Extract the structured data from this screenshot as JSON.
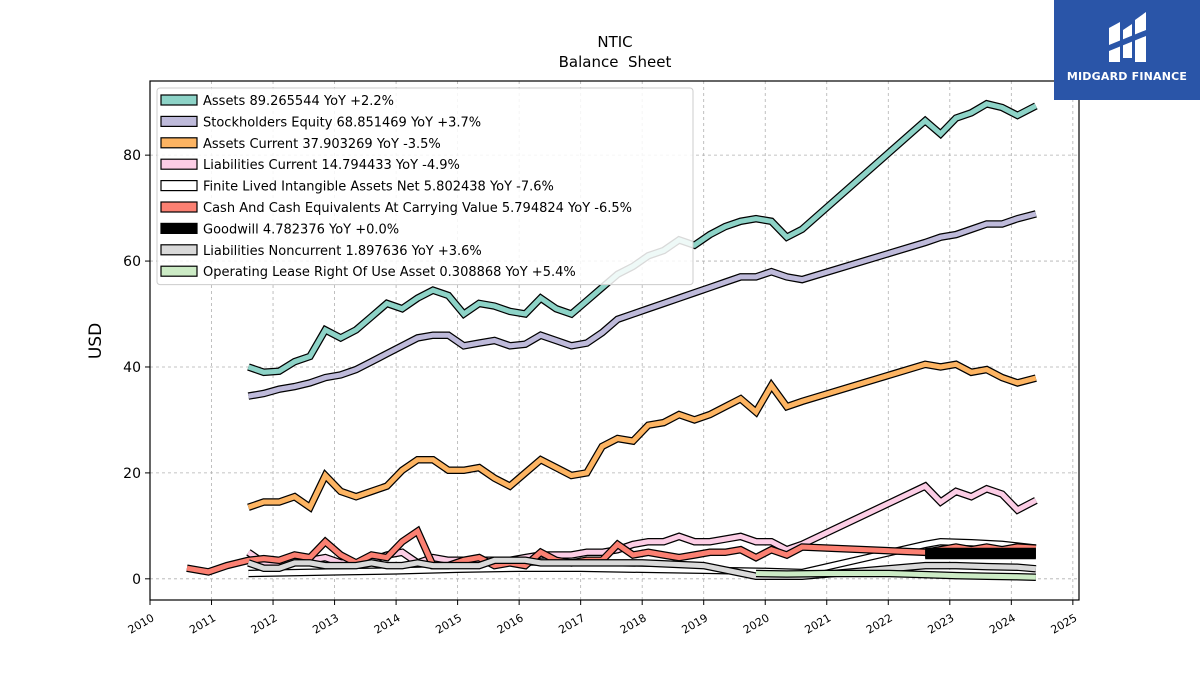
{
  "brand": {
    "name": "MIDGARD FINANCE",
    "bg_color": "#2a55a8"
  },
  "chart_data": {
    "type": "line",
    "title": "NTIC",
    "subtitle": "Balance  Sheet",
    "ylabel": "USD",
    "xlabel": "",
    "xlim": [
      2010.0,
      2025.1
    ],
    "ylim": [
      -4,
      94
    ],
    "x_ticks": [
      2010,
      2011,
      2012,
      2013,
      2014,
      2015,
      2016,
      2017,
      2018,
      2019,
      2020,
      2021,
      2022,
      2023,
      2024,
      2025
    ],
    "y_ticks": [
      0,
      20,
      40,
      60,
      80
    ],
    "grid": true,
    "legend_position": "top-left",
    "series": [
      {
        "name": "Assets  89.265544 YoY +2.2%",
        "color": "#8dd3c7",
        "width": 5,
        "x": [
          2011.6,
          2011.85,
          2012.1,
          2012.35,
          2012.6,
          2012.85,
          2013.1,
          2013.35,
          2013.6,
          2013.85,
          2014.1,
          2014.35,
          2014.6,
          2014.85,
          2015.1,
          2015.35,
          2015.6,
          2015.85,
          2016.1,
          2016.35,
          2016.6,
          2016.85,
          2017.1,
          2017.35,
          2017.6,
          2017.85,
          2018.1,
          2018.35,
          2018.6,
          2018.85,
          2019.1,
          2019.35,
          2019.6,
          2019.85,
          2020.1,
          2020.35,
          2020.6,
          2022.6,
          2022.85,
          2023.1,
          2023.35,
          2023.6,
          2023.85,
          2024.1,
          2024.4
        ],
        "y": [
          40,
          39,
          39.2,
          41,
          42,
          47,
          45.5,
          47,
          49.5,
          52,
          51,
          53,
          54.5,
          53.5,
          50,
          52,
          51.5,
          50.5,
          50,
          53,
          51,
          50,
          52.5,
          55,
          57.5,
          59,
          61,
          62,
          64,
          63,
          65,
          66.5,
          67.5,
          68,
          67.5,
          64.5,
          66,
          86.5,
          84,
          87,
          88,
          89.7,
          89,
          87.5,
          89.3
        ]
      },
      {
        "name": "Stockholders Equity  68.851469 YoY +3.7%",
        "color": "#bebada",
        "width": 5,
        "x": [
          2011.6,
          2011.85,
          2012.1,
          2012.35,
          2012.6,
          2012.85,
          2013.1,
          2013.35,
          2013.6,
          2013.85,
          2014.1,
          2014.35,
          2014.6,
          2014.85,
          2015.1,
          2015.35,
          2015.6,
          2015.85,
          2016.1,
          2016.35,
          2016.6,
          2016.85,
          2017.1,
          2017.35,
          2017.6,
          2017.85,
          2018.1,
          2018.35,
          2018.6,
          2018.85,
          2019.1,
          2019.35,
          2019.6,
          2019.85,
          2020.1,
          2020.35,
          2020.6,
          2022.6,
          2022.85,
          2023.1,
          2023.35,
          2023.6,
          2023.85,
          2024.1,
          2024.4
        ],
        "y": [
          34.5,
          35,
          35.8,
          36.3,
          37,
          38,
          38.5,
          39.5,
          41,
          42.5,
          44,
          45.5,
          46,
          46,
          44,
          44.5,
          45,
          44,
          44.3,
          46,
          45,
          44,
          44.5,
          46.5,
          49,
          50,
          51,
          52,
          53,
          54,
          55,
          56,
          57,
          57,
          58,
          57,
          56.5,
          63.5,
          64.5,
          65,
          66,
          67,
          67,
          68,
          68.9
        ]
      },
      {
        "name": "Assets Current  37.903269 YoY -3.5%",
        "color": "#fdb462",
        "width": 5,
        "x": [
          2011.6,
          2011.85,
          2012.1,
          2012.35,
          2012.6,
          2012.85,
          2013.1,
          2013.35,
          2013.6,
          2013.85,
          2014.1,
          2014.35,
          2014.6,
          2014.85,
          2015.1,
          2015.35,
          2015.6,
          2015.85,
          2016.1,
          2016.35,
          2016.6,
          2016.85,
          2017.1,
          2017.35,
          2017.6,
          2017.85,
          2018.1,
          2018.35,
          2018.6,
          2018.85,
          2019.1,
          2019.35,
          2019.6,
          2019.85,
          2020.1,
          2020.35,
          2020.6,
          2022.6,
          2022.85,
          2023.1,
          2023.35,
          2023.6,
          2023.85,
          2024.1,
          2024.4
        ],
        "y": [
          13.5,
          14.5,
          14.5,
          15.5,
          13.5,
          19.5,
          16.5,
          15.5,
          16.5,
          17.5,
          20.5,
          22.5,
          22.5,
          20.5,
          20.5,
          21,
          19,
          17.5,
          20,
          22.5,
          21,
          19.5,
          20,
          25,
          26.5,
          26,
          29,
          29.5,
          31,
          30,
          31,
          32.5,
          34,
          31.5,
          36.5,
          32.5,
          33.5,
          40.5,
          40,
          40.5,
          39,
          39.5,
          38,
          37,
          37.9
        ]
      },
      {
        "name": "Liabilities Current  14.794433 YoY -4.9%",
        "color": "#fccde5",
        "width": 5,
        "x": [
          2011.6,
          2011.85,
          2012.1,
          2012.35,
          2012.6,
          2012.85,
          2013.1,
          2013.35,
          2013.6,
          2013.85,
          2014.1,
          2014.35,
          2014.6,
          2014.85,
          2015.1,
          2015.35,
          2015.6,
          2015.85,
          2016.1,
          2016.35,
          2016.6,
          2016.85,
          2017.1,
          2017.35,
          2017.6,
          2017.85,
          2018.1,
          2018.35,
          2018.6,
          2018.85,
          2019.1,
          2019.35,
          2019.6,
          2019.85,
          2020.1,
          2020.35,
          2020.6,
          2022.6,
          2022.85,
          2023.1,
          2023.35,
          2023.6,
          2023.85,
          2024.1,
          2024.4
        ],
        "y": [
          5,
          3,
          3,
          3.5,
          3.5,
          4,
          3,
          3,
          3.5,
          4.5,
          5,
          3,
          4,
          3.5,
          3.5,
          3.5,
          3.5,
          3.5,
          4,
          4.5,
          4.5,
          4.5,
          5,
          5,
          5.5,
          6.5,
          7,
          7,
          8,
          7,
          7,
          7.5,
          8,
          7,
          7,
          5.5,
          6.5,
          17.5,
          14.5,
          16.5,
          15.5,
          17,
          16,
          13,
          14.8
        ]
      },
      {
        "name": "Finite Lived Intangible Assets Net  5.802438 YoY -7.6%",
        "color": "#ffffff",
        "width": 5,
        "x": [
          2011.6,
          2013.0,
          2014.0,
          2015.0,
          2016.0,
          2017.0,
          2018.0,
          2019.0,
          2020.0,
          2020.6,
          2022.6,
          2022.85,
          2023.35,
          2023.85,
          2024.4
        ],
        "y": [
          1,
          1.3,
          1.5,
          1.8,
          2.0,
          2.0,
          1.8,
          1.6,
          1.4,
          1.2,
          6.5,
          7,
          6.8,
          6.5,
          5.8
        ]
      },
      {
        "name": "Cash And Cash Equivalents At Carrying Value  5.794824 YoY -6.5%",
        "color": "#fb8072",
        "width": 5,
        "x": [
          2010.6,
          2010.95,
          2011.25,
          2011.6,
          2011.85,
          2012.1,
          2012.35,
          2012.6,
          2012.85,
          2013.1,
          2013.35,
          2013.6,
          2013.85,
          2014.1,
          2014.35,
          2014.6,
          2014.85,
          2015.1,
          2015.35,
          2015.6,
          2015.85,
          2016.1,
          2016.35,
          2016.6,
          2016.85,
          2017.1,
          2017.35,
          2017.6,
          2017.85,
          2018.1,
          2018.35,
          2018.6,
          2018.85,
          2019.1,
          2019.35,
          2019.6,
          2019.85,
          2020.1,
          2020.35,
          2020.6,
          2022.6,
          2022.85,
          2023.1,
          2023.35,
          2023.6,
          2023.85,
          2024.1,
          2024.4
        ],
        "y": [
          2,
          1.3,
          2.5,
          3.5,
          3.8,
          3.5,
          4.5,
          4,
          7,
          4.5,
          3,
          4.5,
          4,
          7,
          9,
          2.5,
          2.5,
          3.5,
          4,
          2.5,
          3,
          2.5,
          5,
          3.5,
          3,
          3.5,
          3.5,
          6.5,
          4.5,
          5,
          4.5,
          4,
          4.5,
          5,
          5,
          5.5,
          4,
          5.5,
          4.5,
          6,
          5,
          5.5,
          6,
          5.5,
          6,
          5.5,
          6,
          5.8
        ]
      },
      {
        "name": "Goodwill  4.782376 YoY +0.0%",
        "color": "#000000",
        "width": 9,
        "x": [
          2022.6,
          2024.4
        ],
        "y": [
          4.78,
          4.78
        ]
      },
      {
        "name": "Liabilities Noncurrent  1.897636 YoY +3.6%",
        "color": "#d9d9d9",
        "width": 5,
        "x": [
          2011.6,
          2011.85,
          2012.1,
          2012.35,
          2012.6,
          2012.85,
          2013.1,
          2013.35,
          2013.6,
          2013.85,
          2014.1,
          2014.35,
          2014.6,
          2014.85,
          2015.1,
          2015.35,
          2015.6,
          2015.85,
          2016.1,
          2016.35,
          2016.6,
          2016.85,
          2017.1,
          2017.35,
          2017.6,
          2018.0,
          2019.0,
          2019.85,
          2020.1,
          2020.6,
          2022.6,
          2023.1,
          2023.6,
          2024.1,
          2024.4
        ],
        "y": [
          3,
          2,
          2,
          3,
          3,
          2.5,
          2.5,
          2.5,
          3,
          2.5,
          2.5,
          3,
          2.5,
          2.5,
          2.5,
          2.5,
          3.5,
          3.5,
          3.5,
          3,
          3,
          3,
          3,
          3,
          3,
          3,
          2.5,
          0.5,
          0.5,
          0.5,
          2.5,
          2.5,
          2.3,
          2.2,
          1.9
        ]
      },
      {
        "name": "Operating Lease Right Of Use Asset  0.308868 YoY +5.4%",
        "color": "#ccebc5",
        "width": 5,
        "x": [
          2019.85,
          2020.35,
          2021.0,
          2022.0,
          2022.6,
          2023.1,
          2023.6,
          2024.1,
          2024.4
        ],
        "y": [
          1.0,
          0.9,
          1.0,
          1.0,
          0.8,
          0.6,
          0.5,
          0.4,
          0.3
        ]
      }
    ]
  }
}
